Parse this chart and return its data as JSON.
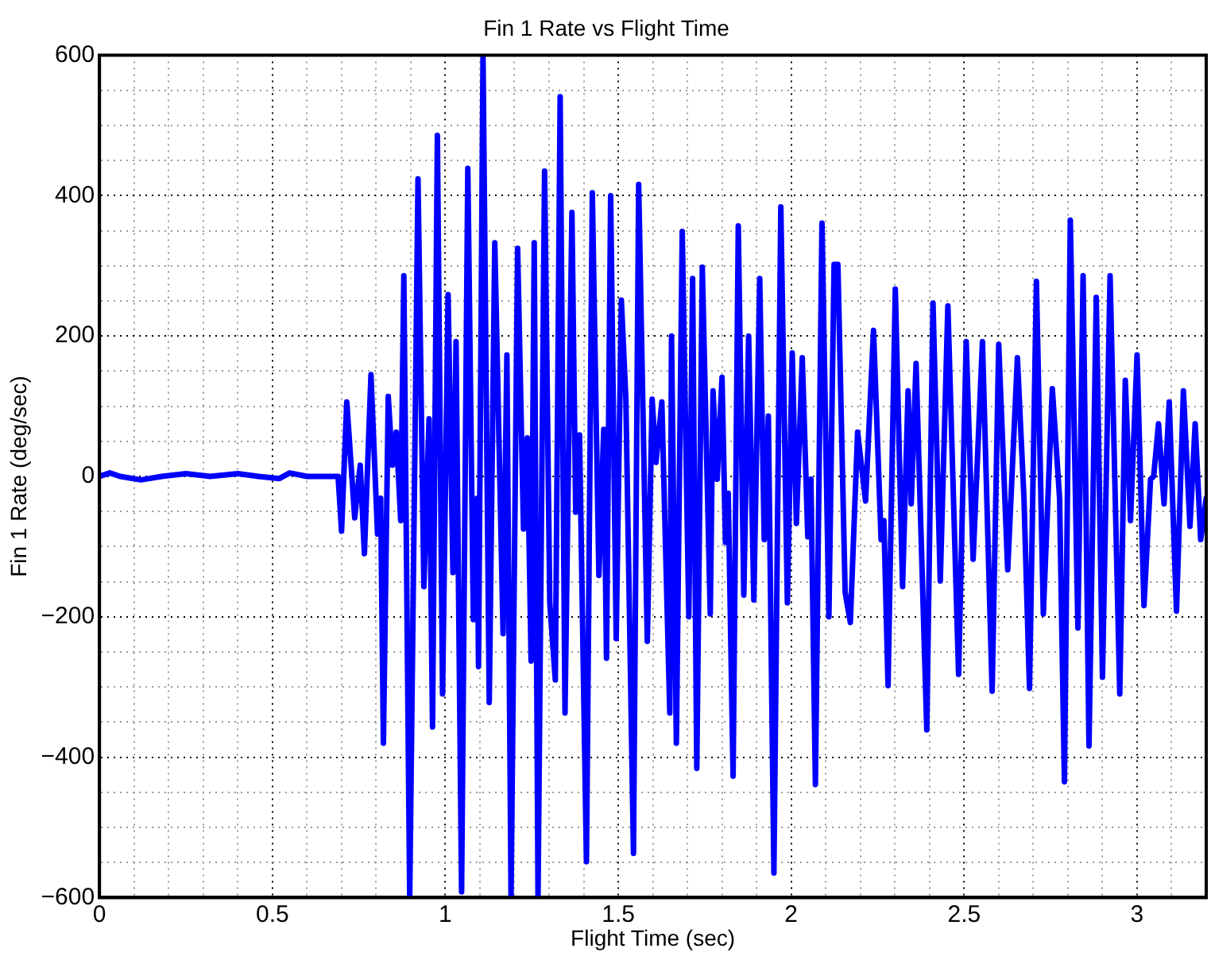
{
  "chart_data": {
    "type": "line",
    "title": "Fin 1 Rate vs Flight Time",
    "xlabel": "Flight Time (sec)",
    "ylabel": "Fin 1 Rate (deg/sec)",
    "xlim": [
      0,
      3.2
    ],
    "ylim": [
      -600,
      600
    ],
    "xticks": [
      0,
      {
        "value": 0.1,
        "label": null
      },
      {
        "value": 0.2,
        "label": null
      },
      {
        "value": 0.3,
        "label": null
      },
      {
        "value": 0.4,
        "label": null
      },
      0.5,
      {
        "value": 0.6,
        "label": null
      },
      {
        "value": 0.7,
        "label": null
      },
      {
        "value": 0.8,
        "label": null
      },
      {
        "value": 0.9,
        "label": null
      },
      1,
      {
        "value": 1.1,
        "label": null
      },
      {
        "value": 1.2,
        "label": null
      },
      {
        "value": 1.3,
        "label": null
      },
      {
        "value": 1.4,
        "label": null
      },
      1.5,
      {
        "value": 1.6,
        "label": null
      },
      {
        "value": 1.7,
        "label": null
      },
      {
        "value": 1.8,
        "label": null
      },
      {
        "value": 1.9,
        "label": null
      },
      2,
      {
        "value": 2.1,
        "label": null
      },
      {
        "value": 2.2,
        "label": null
      },
      {
        "value": 2.3,
        "label": null
      },
      {
        "value": 2.4,
        "label": null
      },
      2.5,
      {
        "value": 2.6,
        "label": null
      },
      {
        "value": 2.7,
        "label": null
      },
      {
        "value": 2.8,
        "label": null
      },
      {
        "value": 2.9,
        "label": null
      },
      3,
      {
        "value": 3.1,
        "label": null
      },
      {
        "value": 3.2,
        "label": null
      }
    ],
    "yticks": [
      {
        "value": -600,
        "label": "−600"
      },
      {
        "value": -550,
        "label": null
      },
      {
        "value": -500,
        "label": null
      },
      {
        "value": -450,
        "label": null
      },
      {
        "value": -400,
        "label": "−400"
      },
      {
        "value": -350,
        "label": null
      },
      {
        "value": -300,
        "label": null
      },
      {
        "value": -250,
        "label": null
      },
      {
        "value": -200,
        "label": "−200"
      },
      {
        "value": -150,
        "label": null
      },
      {
        "value": -100,
        "label": null
      },
      {
        "value": -50,
        "label": null
      },
      0,
      {
        "value": 50,
        "label": null
      },
      {
        "value": 100,
        "label": null
      },
      {
        "value": 150,
        "label": null
      },
      200,
      {
        "value": 250,
        "label": null
      },
      {
        "value": 300,
        "label": null
      },
      {
        "value": 350,
        "label": null
      },
      400,
      {
        "value": 450,
        "label": null
      },
      {
        "value": 500,
        "label": null
      },
      {
        "value": 550,
        "label": null
      },
      600
    ],
    "grid": true,
    "series": [
      {
        "color": "#0000ff",
        "x": [
          0,
          0.03,
          0.06,
          0.12,
          0.18,
          0.25,
          0.32,
          0.4,
          0.46,
          0.52,
          0.55,
          0.6,
          0.69,
          0.7,
          0.715,
          0.738,
          0.754,
          0.766,
          0.785,
          0.804,
          0.813,
          0.821,
          0.835,
          0.847,
          0.858,
          0.871,
          0.88,
          0.897,
          0.921,
          0.938,
          0.953,
          0.963,
          0.977,
          0.992,
          1.008,
          1.022,
          1.031,
          1.047,
          1.065,
          1.081,
          1.092,
          1.096,
          1.109,
          1.127,
          1.143,
          1.167,
          1.178,
          1.19,
          1.209,
          1.226,
          1.237,
          1.248,
          1.257,
          1.268,
          1.287,
          1.302,
          1.318,
          1.332,
          1.346,
          1.366,
          1.377,
          1.388,
          1.408,
          1.425,
          1.444,
          1.458,
          1.466,
          1.478,
          1.494,
          1.509,
          1.522,
          1.544,
          1.559,
          1.584,
          1.598,
          1.609,
          1.626,
          1.649,
          1.654,
          1.668,
          1.685,
          1.704,
          1.715,
          1.727,
          1.743,
          1.766,
          1.774,
          1.786,
          1.8,
          1.81,
          1.818,
          1.832,
          1.847,
          1.863,
          1.877,
          1.892,
          1.909,
          1.922,
          1.934,
          1.95,
          1.97,
          1.989,
          2.003,
          2.015,
          2.032,
          2.048,
          2.057,
          2.07,
          2.089,
          2.109,
          2.124,
          2.135,
          2.156,
          2.171,
          2.192,
          2.215,
          2.238,
          2.26,
          2.268,
          2.28,
          2.301,
          2.322,
          2.338,
          2.347,
          2.361,
          2.392,
          2.41,
          2.431,
          2.453,
          2.484,
          2.506,
          2.526,
          2.553,
          2.581,
          2.6,
          2.626,
          2.654,
          2.673,
          2.689,
          2.709,
          2.729,
          2.755,
          2.776,
          2.79,
          2.807,
          2.829,
          2.844,
          2.861,
          2.882,
          2.9,
          2.922,
          2.95,
          2.966,
          2.981,
          3,
          3.02,
          3.039,
          3.048,
          3.062,
          3.078,
          3.093,
          3.114,
          3.134,
          3.153,
          3.168,
          3.184,
          3.2
        ],
        "values": [
          0,
          5,
          0,
          -5,
          0,
          4,
          0,
          4,
          0,
          -3,
          5,
          0,
          0,
          -78,
          106,
          -59,
          16,
          -110,
          145,
          -82,
          -31,
          -380,
          114,
          16,
          63,
          -63,
          286,
          -600,
          424,
          -157,
          82,
          -357,
          486,
          -310,
          259,
          -137,
          192,
          -592,
          439,
          -204,
          -31,
          -271,
          600,
          -322,
          333,
          -224,
          173,
          -600,
          325,
          -75,
          55,
          -263,
          333,
          -600,
          435,
          -180,
          -290,
          541,
          -337,
          376,
          -51,
          59,
          -549,
          404,
          -141,
          67,
          -259,
          400,
          -231,
          251,
          110,
          -537,
          416,
          -235,
          110,
          20,
          106,
          -337,
          200,
          -380,
          349,
          -200,
          282,
          -416,
          298,
          -196,
          122,
          -4,
          141,
          -94,
          -24,
          -427,
          357,
          -169,
          200,
          -176,
          282,
          -90,
          86,
          -565,
          384,
          -180,
          176,
          -67,
          169,
          -86,
          -4,
          -439,
          361,
          -200,
          302,
          302,
          -165,
          -208,
          63,
          -35,
          208,
          -90,
          -63,
          -298,
          267,
          -157,
          122,
          -39,
          161,
          -361,
          247,
          -149,
          243,
          -282,
          192,
          -118,
          192,
          -306,
          188,
          -133,
          169,
          -31,
          -302,
          278,
          -196,
          125,
          -31,
          -435,
          365,
          -216,
          286,
          -384,
          255,
          -286,
          286,
          -310,
          137,
          -63,
          173,
          -184,
          -4,
          0,
          75,
          -39,
          106,
          -192,
          122,
          -71,
          75,
          -90,
          -31
        ]
      }
    ]
  }
}
